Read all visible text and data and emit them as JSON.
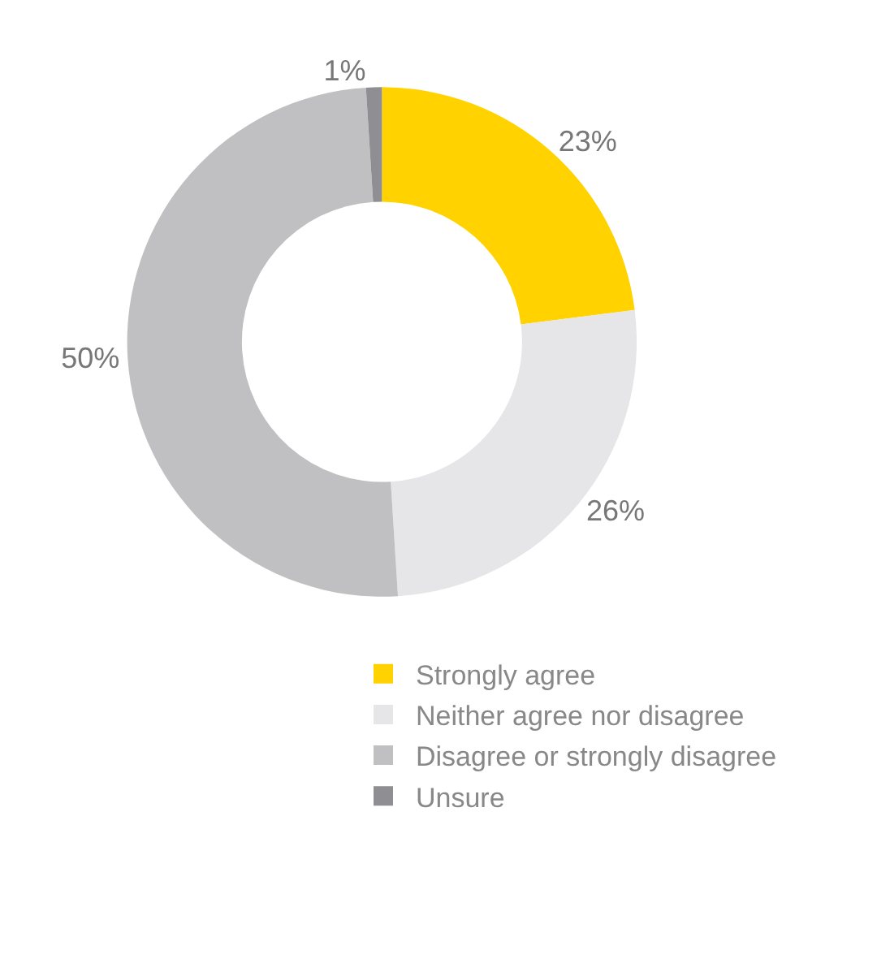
{
  "chart_data": {
    "type": "donut",
    "categories": [
      "Strongly agree",
      "Neither agree nor disagree",
      "Disagree or strongly disagree",
      "Unsure"
    ],
    "values": [
      23,
      26,
      50,
      1
    ],
    "colors": [
      "#ffd200",
      "#e6e6e8",
      "#c0c0c2",
      "#8e8e93"
    ],
    "value_labels": [
      "23%",
      "26%",
      "50%",
      "1%"
    ],
    "legend": "bottom"
  }
}
